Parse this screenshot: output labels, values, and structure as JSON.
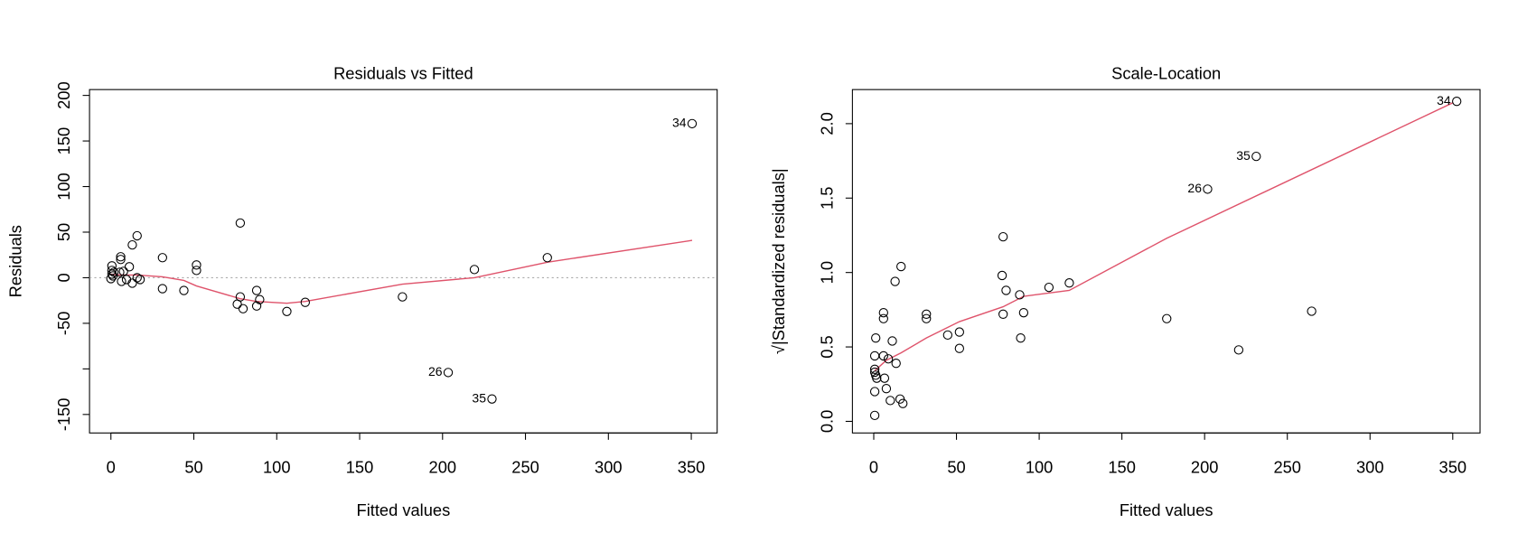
{
  "chart_data": [
    {
      "type": "scatter",
      "title": "Residuals vs Fitted",
      "xlabel": "Fitted values",
      "ylabel": "Residuals",
      "x": [
        0.6,
        0.6,
        0.6,
        1.2,
        0,
        1.8,
        5.9,
        5.9,
        5.3,
        6.4,
        7.6,
        9.4,
        11.1,
        12.9,
        15.8,
        12.9,
        15.8,
        17.6,
        31.1,
        31.1,
        44,
        51.6,
        51.6,
        78,
        78,
        76.2,
        79.7,
        87.9,
        89.7,
        87.9,
        106.1,
        117.2,
        175.8,
        203.4,
        229.8,
        219.2,
        263.2,
        350.5
      ],
      "values": [
        13,
        8,
        4,
        2,
        -1,
        6,
        23,
        20,
        6,
        -4,
        7,
        -2,
        12,
        36,
        46,
        -6,
        0,
        -2,
        22,
        -12,
        -14,
        14,
        8,
        60,
        -21,
        -29,
        -34,
        -14,
        -24,
        -31,
        -37,
        -27,
        -21,
        -104,
        -133,
        9,
        22,
        169
      ],
      "point_labels": [
        null,
        null,
        null,
        null,
        null,
        null,
        null,
        null,
        null,
        null,
        null,
        null,
        null,
        null,
        null,
        null,
        null,
        null,
        null,
        null,
        null,
        null,
        null,
        null,
        null,
        null,
        null,
        null,
        null,
        null,
        null,
        null,
        null,
        "26",
        "35",
        null,
        null,
        "34"
      ],
      "smooth": {
        "x": [
          0,
          5.9,
          15.8,
          31.1,
          44,
          51.6,
          78,
          87.9,
          106.1,
          117.2,
          175.8,
          219.2,
          263.2,
          350.5
        ],
        "values": [
          4,
          3,
          3,
          1,
          -3,
          -9,
          -23,
          -26,
          -28,
          -26,
          -7,
          0,
          17,
          41
        ],
        "color": "#DF536B"
      },
      "reference_line": 0,
      "xlim": [
        -12.9,
        365.6
      ],
      "ylim": [
        -170.3,
        206.4
      ],
      "xticks": [
        0,
        50,
        100,
        150,
        200,
        250,
        300,
        350
      ],
      "yticks": [
        -150,
        {
          "value": -100,
          "label": null
        },
        -50,
        0,
        50,
        100,
        150,
        200
      ]
    },
    {
      "type": "scatter",
      "title": "Scale-Location",
      "xlabel": "Fitted values",
      "ylabel": "√|Standardized residuals|",
      "x": [
        0.6,
        0.6,
        0.6,
        0.6,
        1.2,
        1.8,
        0.6,
        1.2,
        5.9,
        5.9,
        5.9,
        6.5,
        7.6,
        8.8,
        10,
        11.2,
        13.5,
        12.9,
        16.5,
        15.9,
        17.6,
        31.8,
        31.8,
        44.7,
        51.8,
        51.8,
        77.6,
        78.2,
        78.2,
        80,
        88.2,
        88.8,
        90.6,
        105.9,
        118.2,
        177.1,
        220.6,
        201.8,
        231.2,
        264.7,
        352.4
      ],
      "values": [
        0.04,
        0.2,
        0.33,
        0.35,
        0.31,
        0.29,
        0.44,
        0.56,
        0.73,
        0.69,
        0.44,
        0.29,
        0.22,
        0.42,
        0.14,
        0.54,
        0.39,
        0.94,
        1.04,
        0.15,
        0.12,
        0.72,
        0.69,
        0.58,
        0.6,
        0.49,
        0.98,
        1.24,
        0.72,
        0.88,
        0.85,
        0.56,
        0.73,
        0.9,
        0.93,
        0.69,
        0.48,
        1.56,
        1.78,
        0.74,
        2.15
      ],
      "point_labels": [
        null,
        null,
        null,
        null,
        null,
        null,
        null,
        null,
        null,
        null,
        null,
        null,
        null,
        null,
        null,
        null,
        null,
        null,
        null,
        null,
        null,
        null,
        null,
        null,
        null,
        null,
        null,
        null,
        null,
        null,
        null,
        null,
        null,
        null,
        null,
        null,
        null,
        "26",
        "35",
        null,
        "34"
      ],
      "smooth": {
        "x": [
          0.6,
          7.6,
          16.5,
          31.8,
          51.8,
          78.2,
          90.6,
          118.2,
          177.1,
          350
        ],
        "values": [
          0.34,
          0.41,
          0.46,
          0.56,
          0.67,
          0.77,
          0.84,
          0.88,
          1.23,
          2.14
        ],
        "color": "#DF536B"
      },
      "xlim": [
        -12.9,
        366.5
      ],
      "ylim": [
        -0.078,
        2.229
      ],
      "xticks": [
        0,
        50,
        100,
        150,
        200,
        250,
        300,
        350
      ],
      "yticks": [
        {
          "value": 0,
          "label": "0.0"
        },
        0.5,
        {
          "value": 1,
          "label": "1.0"
        },
        1.5,
        {
          "value": 2,
          "label": "2.0"
        }
      ]
    }
  ]
}
